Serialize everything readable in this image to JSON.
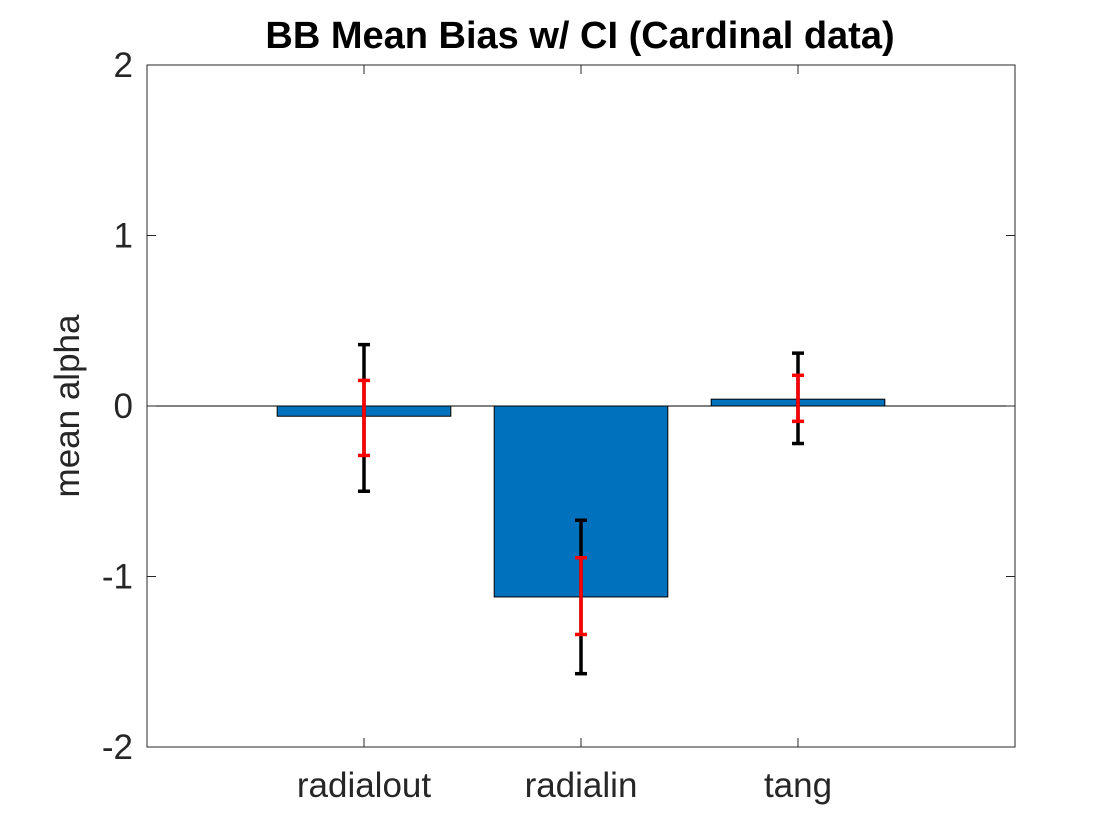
{
  "chart_data": {
    "type": "bar",
    "title": "BB Mean Bias w/ CI (Cardinal data)",
    "xlabel": "",
    "ylabel": "mean alpha",
    "categories": [
      "radialout",
      "radialin",
      "tang"
    ],
    "values": [
      -0.06,
      -1.12,
      0.04
    ],
    "ci_outer": [
      [
        -0.5,
        0.36
      ],
      [
        -1.57,
        -0.67
      ],
      [
        -0.22,
        0.31
      ]
    ],
    "ci_inner": [
      [
        -0.29,
        0.15
      ],
      [
        -1.34,
        -0.89
      ],
      [
        -0.09,
        0.18
      ]
    ],
    "ylim": [
      -2,
      2
    ],
    "xlim": [
      0,
      4
    ],
    "yticks": [
      "-2",
      "-1",
      "0",
      "1",
      "2"
    ],
    "grid": false,
    "colors": {
      "bar": "#0072BD",
      "ci_outer": "#000000",
      "ci_inner": "#FF0000",
      "axis": "#262626"
    }
  }
}
